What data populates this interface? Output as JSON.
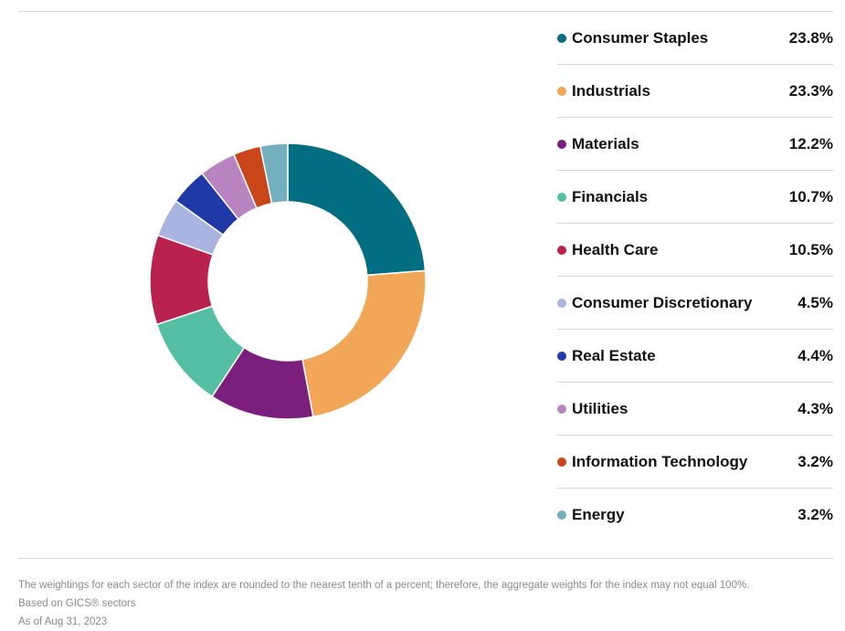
{
  "chart_data": {
    "type": "pie",
    "variant": "donut",
    "legend_position": "right",
    "categories": [
      "Consumer Staples",
      "Industrials",
      "Materials",
      "Financials",
      "Health Care",
      "Consumer Discretionary",
      "Real Estate",
      "Utilities",
      "Information Technology",
      "Energy"
    ],
    "values": [
      23.8,
      23.3,
      12.2,
      10.7,
      10.5,
      4.5,
      4.4,
      4.3,
      3.2,
      3.2
    ],
    "value_labels": [
      "23.8%",
      "23.3%",
      "12.2%",
      "10.7%",
      "10.5%",
      "4.5%",
      "4.4%",
      "4.3%",
      "3.2%",
      "3.2%"
    ],
    "colors": [
      "#036d82",
      "#f1a757",
      "#7a1f7c",
      "#55bfa3",
      "#b9214e",
      "#a9b4e0",
      "#1f3aa6",
      "#b784bf",
      "#c9461a",
      "#74afbe"
    ]
  },
  "footnotes": {
    "rounding": "The weightings for each sector of the index are rounded to the nearest tenth of a percent; therefore, the aggregate weights for the index may not equal 100%.",
    "basis": "Based on GICS® sectors",
    "as_of": "As of Aug 31, 2023"
  }
}
